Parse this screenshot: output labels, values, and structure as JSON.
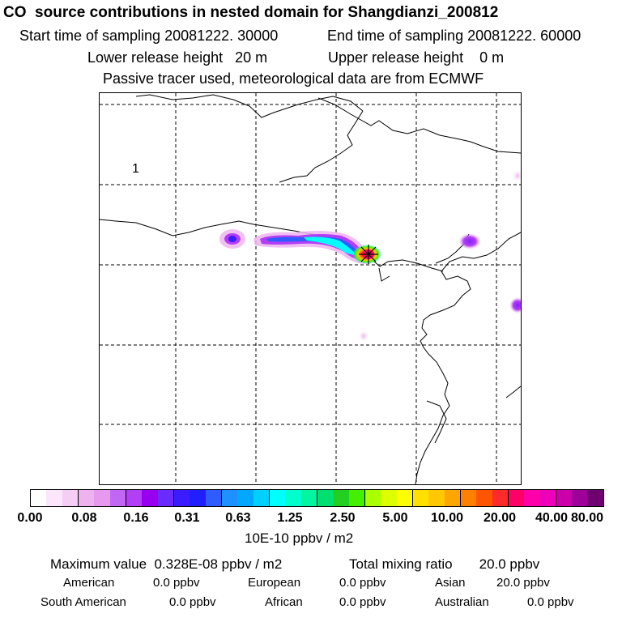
{
  "header": {
    "title": "CO  source contributions in nested domain for Shangdianzi_200812",
    "start_time": "Start time of sampling 20081222. 30000",
    "end_time": "End time of sampling 20081222. 60000",
    "lower_height": "Lower release height   20 m",
    "upper_height": "Upper release height    0 m",
    "tracer_note": "Passive tracer used, meteorological data are from ECMWF"
  },
  "map": {
    "panel_label": "1",
    "station_marker": "star-marker"
  },
  "colorbar": {
    "colors": [
      "#ffffff",
      "#fbe6fb",
      "#f5cdf5",
      "#eeb3ee",
      "#e699ef",
      "#c266f4",
      "#b23ff5",
      "#9a00f0",
      "#6a2bff",
      "#3a1cff",
      "#2020ff",
      "#2f5cff",
      "#1e90ff",
      "#00a8ff",
      "#00d0ff",
      "#00ffff",
      "#00ffcc",
      "#00f5a0",
      "#00e070",
      "#22d022",
      "#44f000",
      "#aaff00",
      "#ddff00",
      "#ffff00",
      "#ffe000",
      "#ffc800",
      "#ffa500",
      "#ff7f00",
      "#ff5500",
      "#ff2a2a",
      "#ff0066",
      "#ff00aa",
      "#ee00bb",
      "#cc00aa",
      "#a0009a",
      "#700070"
    ],
    "tick_labels": [
      "0.00",
      "0.08",
      "0.16",
      "0.31",
      "0.63",
      "1.25",
      "2.50",
      "5.00",
      "10.00",
      "20.00",
      "40.00",
      "80.00"
    ],
    "unit": "10E-10 ppbv / m2"
  },
  "footer": {
    "max_value": "Maximum value  0.328E-08 ppbv / m2",
    "total_mixing": "Total mixing ratio       20.0 ppbv",
    "american": "American",
    "american_val": "0.0 ppbv",
    "european": "European",
    "european_val": "0.0 ppbv",
    "asian": "Asian",
    "asian_val": "20.0 ppbv",
    "south_american": "South American",
    "south_american_val": "0.0 ppbv",
    "african": "African",
    "african_val": "0.0 ppbv",
    "australian": "Australian",
    "australian_val": "0.0 ppbv"
  }
}
